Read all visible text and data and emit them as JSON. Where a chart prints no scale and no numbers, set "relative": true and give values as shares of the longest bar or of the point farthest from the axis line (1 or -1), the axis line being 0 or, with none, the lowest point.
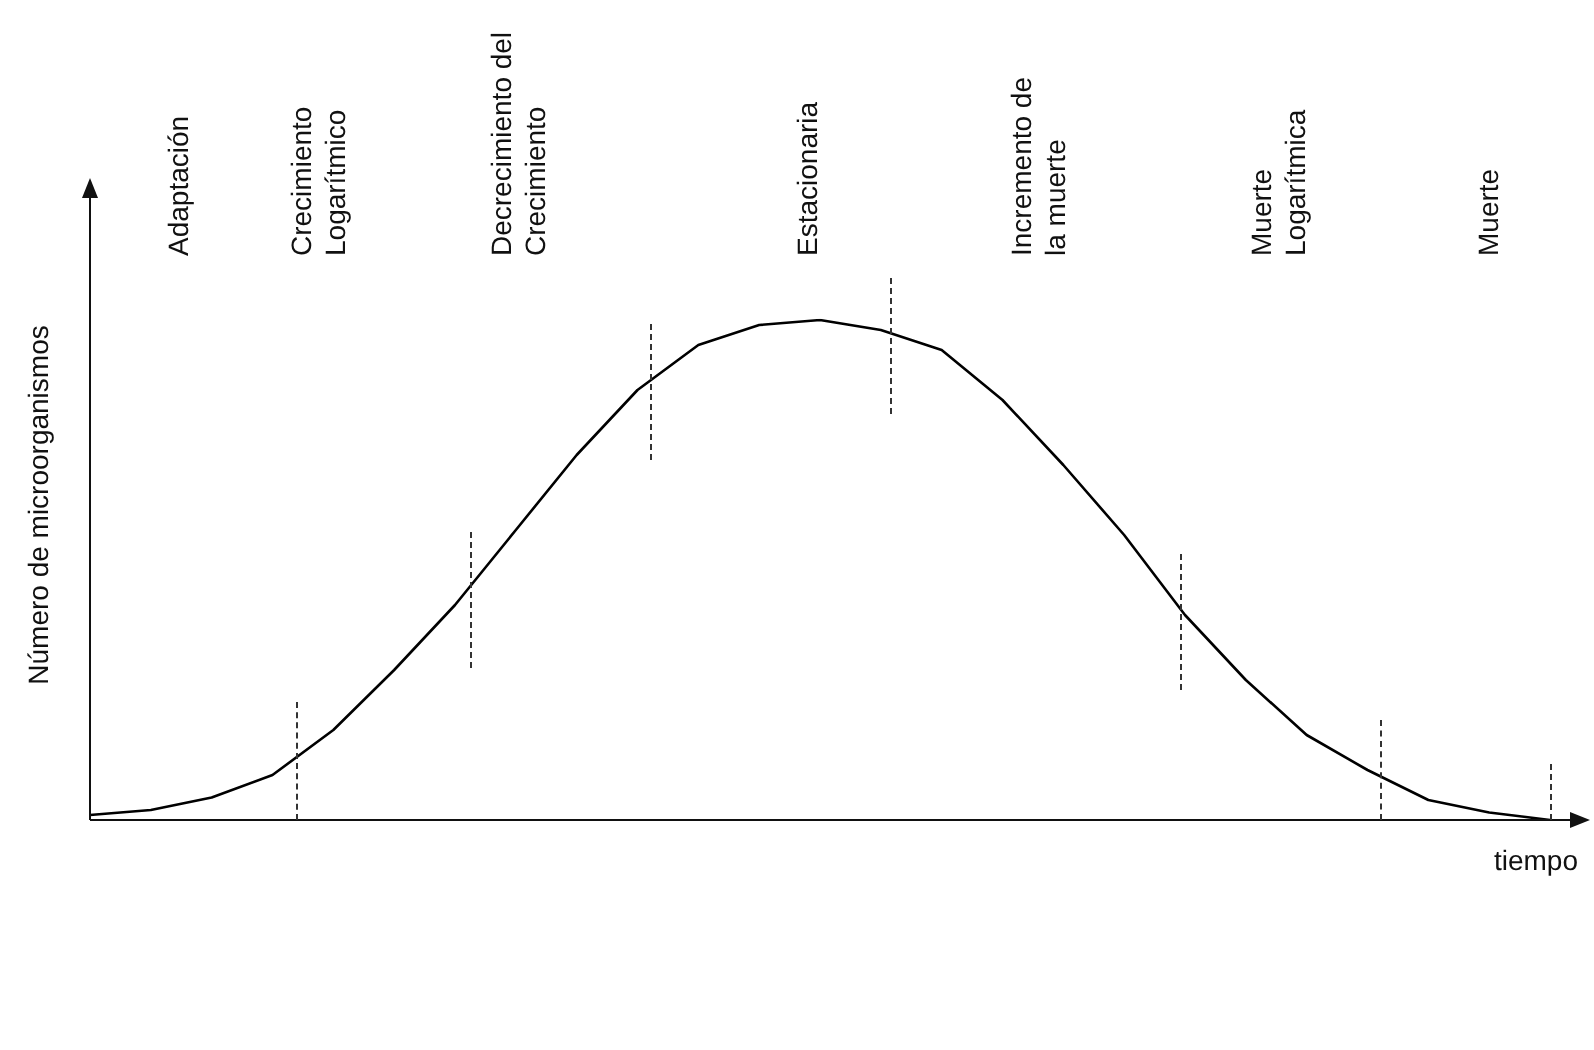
{
  "chart_data": {
    "type": "line",
    "relative": true,
    "xlabel": "tiempo",
    "ylabel": "Número de microorganismos",
    "marker": "none",
    "line_style": "solid",
    "legend": false,
    "categories": [
      null,
      null,
      null,
      null,
      null,
      null,
      null,
      null,
      null,
      null,
      null,
      null,
      null,
      null,
      null,
      null,
      null,
      null,
      null,
      null,
      null,
      null,
      null,
      null,
      null
    ],
    "series": [
      {
        "color": "#000000",
        "values": [
          0.01,
          0.02,
          0.045,
          0.09,
          0.18,
          0.3,
          0.43,
          0.58,
          0.73,
          0.86,
          0.95,
          0.99,
          1,
          0.98,
          0.94,
          0.84,
          0.71,
          0.57,
          0.41,
          0.28,
          0.17,
          0.1,
          0.04,
          0.015,
          0
        ]
      }
    ],
    "annotations": [
      "Adaptación",
      "Crecimiento\nLogarítmico",
      "Decrecimiento del\nCrecimiento",
      "Estacionaria",
      "Incremento de\nla muerte",
      "Muerte\nLogarítmica",
      "Muerte"
    ]
  }
}
